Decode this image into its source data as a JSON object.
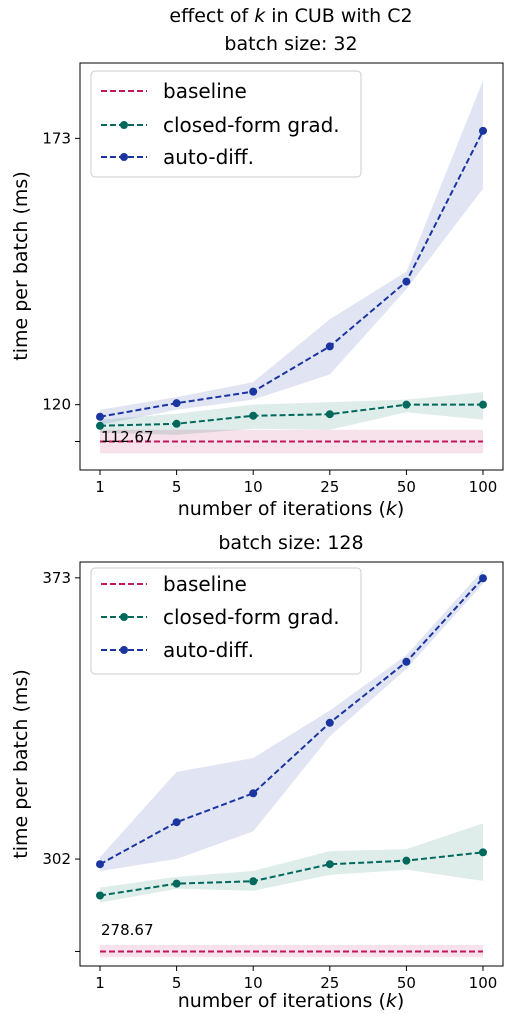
{
  "figure_title_pre": "effect of ",
  "figure_title_var": "k",
  "figure_title_post": " in CUB with C2",
  "colors": {
    "baseline": "#c2185b",
    "closed_form": "#00695c",
    "auto_diff": "#1a35a0"
  },
  "chart_data": [
    {
      "type": "line",
      "title": "batch size: 32",
      "xlabel_pre": "number of iterations (",
      "xlabel_var": "k",
      "xlabel_post": ")",
      "ylabel": "time per batch (ms)",
      "categories": [
        "1",
        "5",
        "10",
        "25",
        "50",
        "100"
      ],
      "yticks": [
        {
          "value": 112.67,
          "label": ""
        },
        {
          "value": 120,
          "label": "120"
        },
        {
          "value": 173,
          "label": "173"
        }
      ],
      "ylim": [
        107,
        188
      ],
      "grid": false,
      "legend_position": "top-left",
      "annotation": {
        "label": "112.67",
        "value": 112.67
      },
      "series": [
        {
          "name": "baseline",
          "color_key": "baseline",
          "markers": false,
          "values": [
            112.67,
            112.67,
            112.67,
            112.67,
            112.67,
            112.67
          ],
          "lower": [
            110.3,
            110.3,
            110.3,
            110.3,
            110.3,
            110.3
          ],
          "upper": [
            115.0,
            115.0,
            115.0,
            115.0,
            115.0,
            115.0
          ]
        },
        {
          "name": "closed-form grad.",
          "color_key": "closed_form",
          "markers": true,
          "values": [
            115.8,
            116.2,
            117.8,
            118.1,
            120.0,
            120.0
          ],
          "lower": [
            114.4,
            114.0,
            115.2,
            115.0,
            118.5,
            117.0
          ],
          "upper": [
            117.0,
            118.2,
            120.0,
            120.5,
            121.0,
            122.5
          ]
        },
        {
          "name": "auto-diff.",
          "color_key": "auto_diff",
          "markers": true,
          "values": [
            117.6,
            120.3,
            122.6,
            131.6,
            144.5,
            174.5
          ],
          "lower": [
            116.0,
            119.0,
            121.0,
            126.0,
            143.0,
            163.0
          ],
          "upper": [
            119.0,
            121.5,
            124.5,
            137.0,
            146.5,
            184.5
          ]
        }
      ]
    },
    {
      "type": "line",
      "title": "batch size: 128",
      "xlabel_pre": "number of iterations (",
      "xlabel_var": "k",
      "xlabel_post": ")",
      "ylabel": "time per batch (ms)",
      "categories": [
        "1",
        "5",
        "10",
        "25",
        "50",
        "100"
      ],
      "yticks": [
        {
          "value": 278.67,
          "label": ""
        },
        {
          "value": 302,
          "label": "302"
        },
        {
          "value": 373,
          "label": "373"
        }
      ],
      "ylim": [
        275,
        377
      ],
      "grid": false,
      "legend_position": "top-left",
      "annotation": {
        "label": "278.67",
        "value": 278.67
      },
      "series": [
        {
          "name": "baseline",
          "color_key": "baseline",
          "markers": false,
          "values": [
            278.67,
            278.67,
            278.67,
            278.67,
            278.67,
            278.67
          ],
          "lower": [
            277.2,
            277.2,
            277.2,
            277.2,
            277.2,
            277.2
          ],
          "upper": [
            280.3,
            280.3,
            280.3,
            280.3,
            280.3,
            280.3
          ]
        },
        {
          "name": "closed-form grad.",
          "color_key": "closed_form",
          "markers": true,
          "values": [
            292.8,
            295.8,
            296.4,
            300.7,
            301.6,
            303.7
          ],
          "lower": [
            291.0,
            294.5,
            294.0,
            298.0,
            299.3,
            296.5
          ],
          "upper": [
            294.8,
            297.5,
            299.0,
            304.0,
            304.5,
            311.0
          ]
        },
        {
          "name": "auto-diff.",
          "color_key": "auto_diff",
          "markers": true,
          "values": [
            300.7,
            311.3,
            318.6,
            336.4,
            351.8,
            372.9
          ],
          "lower": [
            299.0,
            302.0,
            309.0,
            333.0,
            350.0,
            371.5
          ],
          "upper": [
            302.5,
            324.0,
            327.5,
            339.5,
            353.5,
            375.0
          ]
        }
      ]
    }
  ]
}
